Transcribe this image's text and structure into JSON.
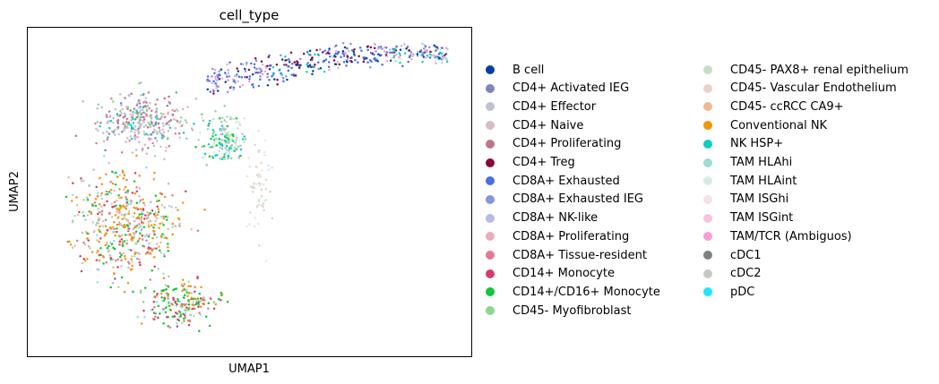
{
  "chart_data": {
    "type": "scatter",
    "title": "cell_type",
    "xlabel": "UMAP1",
    "ylabel": "UMAP2",
    "grid": false,
    "ticks": "none",
    "legend_placement": "right, two columns",
    "series": [
      {
        "name": "B cell",
        "color": "#023fa5"
      },
      {
        "name": "CD4+ Activated IEG",
        "color": "#7d87b9"
      },
      {
        "name": "CD4+ Effector",
        "color": "#bec1d4"
      },
      {
        "name": "CD4+ Naive",
        "color": "#d6bcc0"
      },
      {
        "name": "CD4+ Proliferating",
        "color": "#bb7784"
      },
      {
        "name": "CD4+ Treg",
        "color": "#8e063b"
      },
      {
        "name": "CD8A+ Exhausted",
        "color": "#4a6fe3"
      },
      {
        "name": "CD8A+ Exhausted IEG",
        "color": "#8595e1"
      },
      {
        "name": "CD8A+ NK-like",
        "color": "#b5bbe3"
      },
      {
        "name": "CD8A+ Proliferating",
        "color": "#e6afb9"
      },
      {
        "name": "CD8A+ Tissue-resident",
        "color": "#e07b91"
      },
      {
        "name": "CD14+ Monocyte",
        "color": "#d33f6a"
      },
      {
        "name": "CD14+/CD16+ Monocyte",
        "color": "#11c638"
      },
      {
        "name": "CD45- Myofibroblast",
        "color": "#8dd593"
      },
      {
        "name": "CD45- PAX8+ renal epithelium",
        "color": "#c6dec7"
      },
      {
        "name": "CD45- Vascular Endothelium",
        "color": "#ead3c6"
      },
      {
        "name": "CD45- ccRCC CA9+",
        "color": "#f0b98d"
      },
      {
        "name": "Conventional NK",
        "color": "#ef9708"
      },
      {
        "name": "NK HSP+",
        "color": "#0fcfc0"
      },
      {
        "name": "TAM HLAhi",
        "color": "#9cded6"
      },
      {
        "name": "TAM HLAint",
        "color": "#d5eae7"
      },
      {
        "name": "TAM ISGhi",
        "color": "#f3e1eb"
      },
      {
        "name": "TAM ISGint",
        "color": "#f6c4e1"
      },
      {
        "name": "TAM/TCR (Ambiguos)",
        "color": "#f79cd4"
      },
      {
        "name": "cDC1",
        "color": "#7f7f7f"
      },
      {
        "name": "cDC2",
        "color": "#c7c7c7"
      },
      {
        "name": "pDC",
        "color": "#1ce6ff"
      }
    ]
  }
}
